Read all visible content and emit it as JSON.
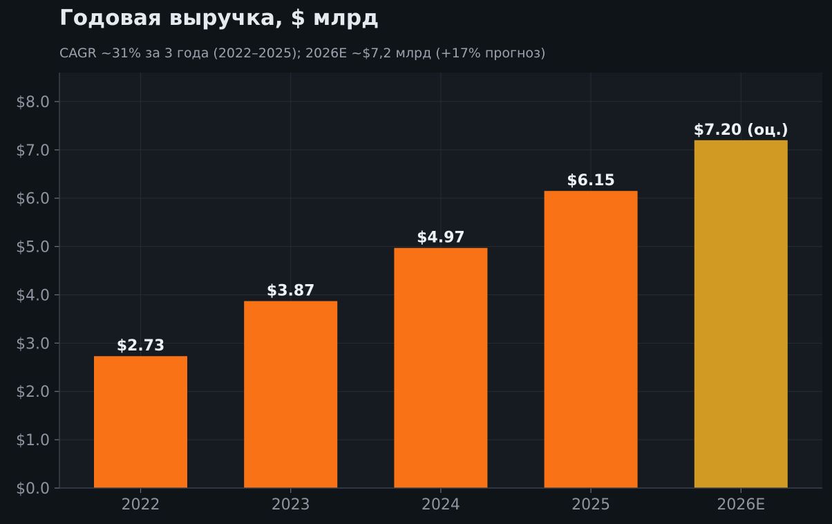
{
  "header": {
    "title": "Годовая выручка, $ млрд",
    "subtitle": "CAGR ~31% за 3 года (2022–2025); 2026E ~$7,2 млрд (+17% прогноз)"
  },
  "colors": {
    "background": "#0f1419",
    "plot_background": "#161b22",
    "grid": "#252c35",
    "bar_actual": "#f97316",
    "bar_estimate": "#d19a22"
  },
  "chart_data": {
    "type": "bar",
    "title": "Годовая выручка, $ млрд",
    "subtitle": "CAGR ~31% за 3 года (2022–2025); 2026E ~$7,2 млрд (+17% прогноз)",
    "xlabel": "",
    "ylabel": "",
    "categories": [
      "2022",
      "2023",
      "2024",
      "2025",
      "2026E"
    ],
    "values": [
      2.73,
      3.87,
      4.97,
      6.15,
      7.2
    ],
    "value_labels": [
      "$2.73",
      "$3.87",
      "$4.97",
      "$6.15",
      "$7.20 (оц.)"
    ],
    "estimate": [
      false,
      false,
      false,
      false,
      true
    ],
    "ylim": [
      0,
      8.6
    ],
    "yticks": [
      0,
      1,
      2,
      3,
      4,
      5,
      6,
      7,
      8
    ],
    "ytick_labels": [
      "$0.0",
      "$1.0",
      "$2.0",
      "$3.0",
      "$4.0",
      "$5.0",
      "$6.0",
      "$7.0",
      "$8.0"
    ],
    "grid": true,
    "legend": false
  }
}
